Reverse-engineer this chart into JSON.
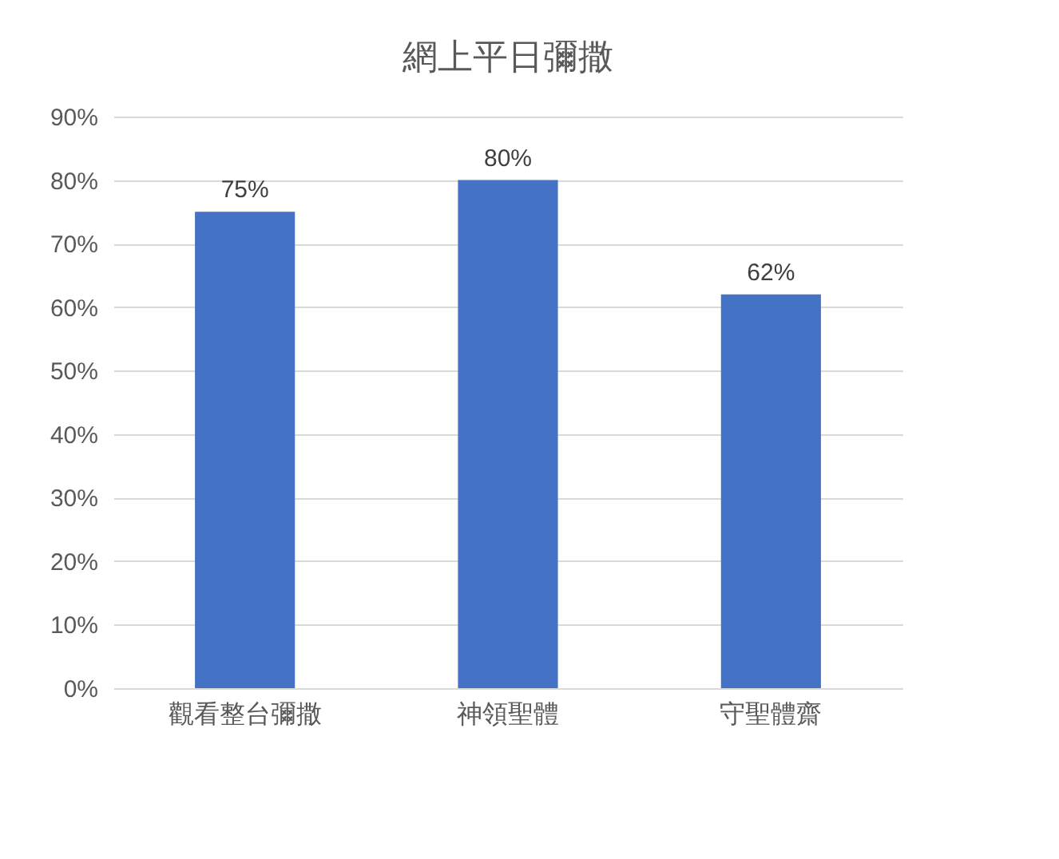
{
  "chart_data": {
    "type": "bar",
    "title": "網上平日彌撒",
    "categories": [
      "觀看整台彌撒",
      "神領聖體",
      "守聖體齋"
    ],
    "values": [
      75,
      80,
      62
    ],
    "color": "#4472c4",
    "value_labels": [
      "75%",
      "80%",
      "62%"
    ],
    "ylim": [
      0,
      90
    ],
    "yticks": [
      {
        "value": 0,
        "label": "0%"
      },
      {
        "value": 10,
        "label": "10%"
      },
      {
        "value": 20,
        "label": "20%"
      },
      {
        "value": 30,
        "label": "30%"
      },
      {
        "value": 40,
        "label": "40%"
      },
      {
        "value": 50,
        "label": "50%"
      },
      {
        "value": 60,
        "label": "60%"
      },
      {
        "value": 70,
        "label": "70%"
      },
      {
        "value": 80,
        "label": "80%"
      },
      {
        "value": 90,
        "label": "90%"
      }
    ],
    "grid": "y"
  }
}
